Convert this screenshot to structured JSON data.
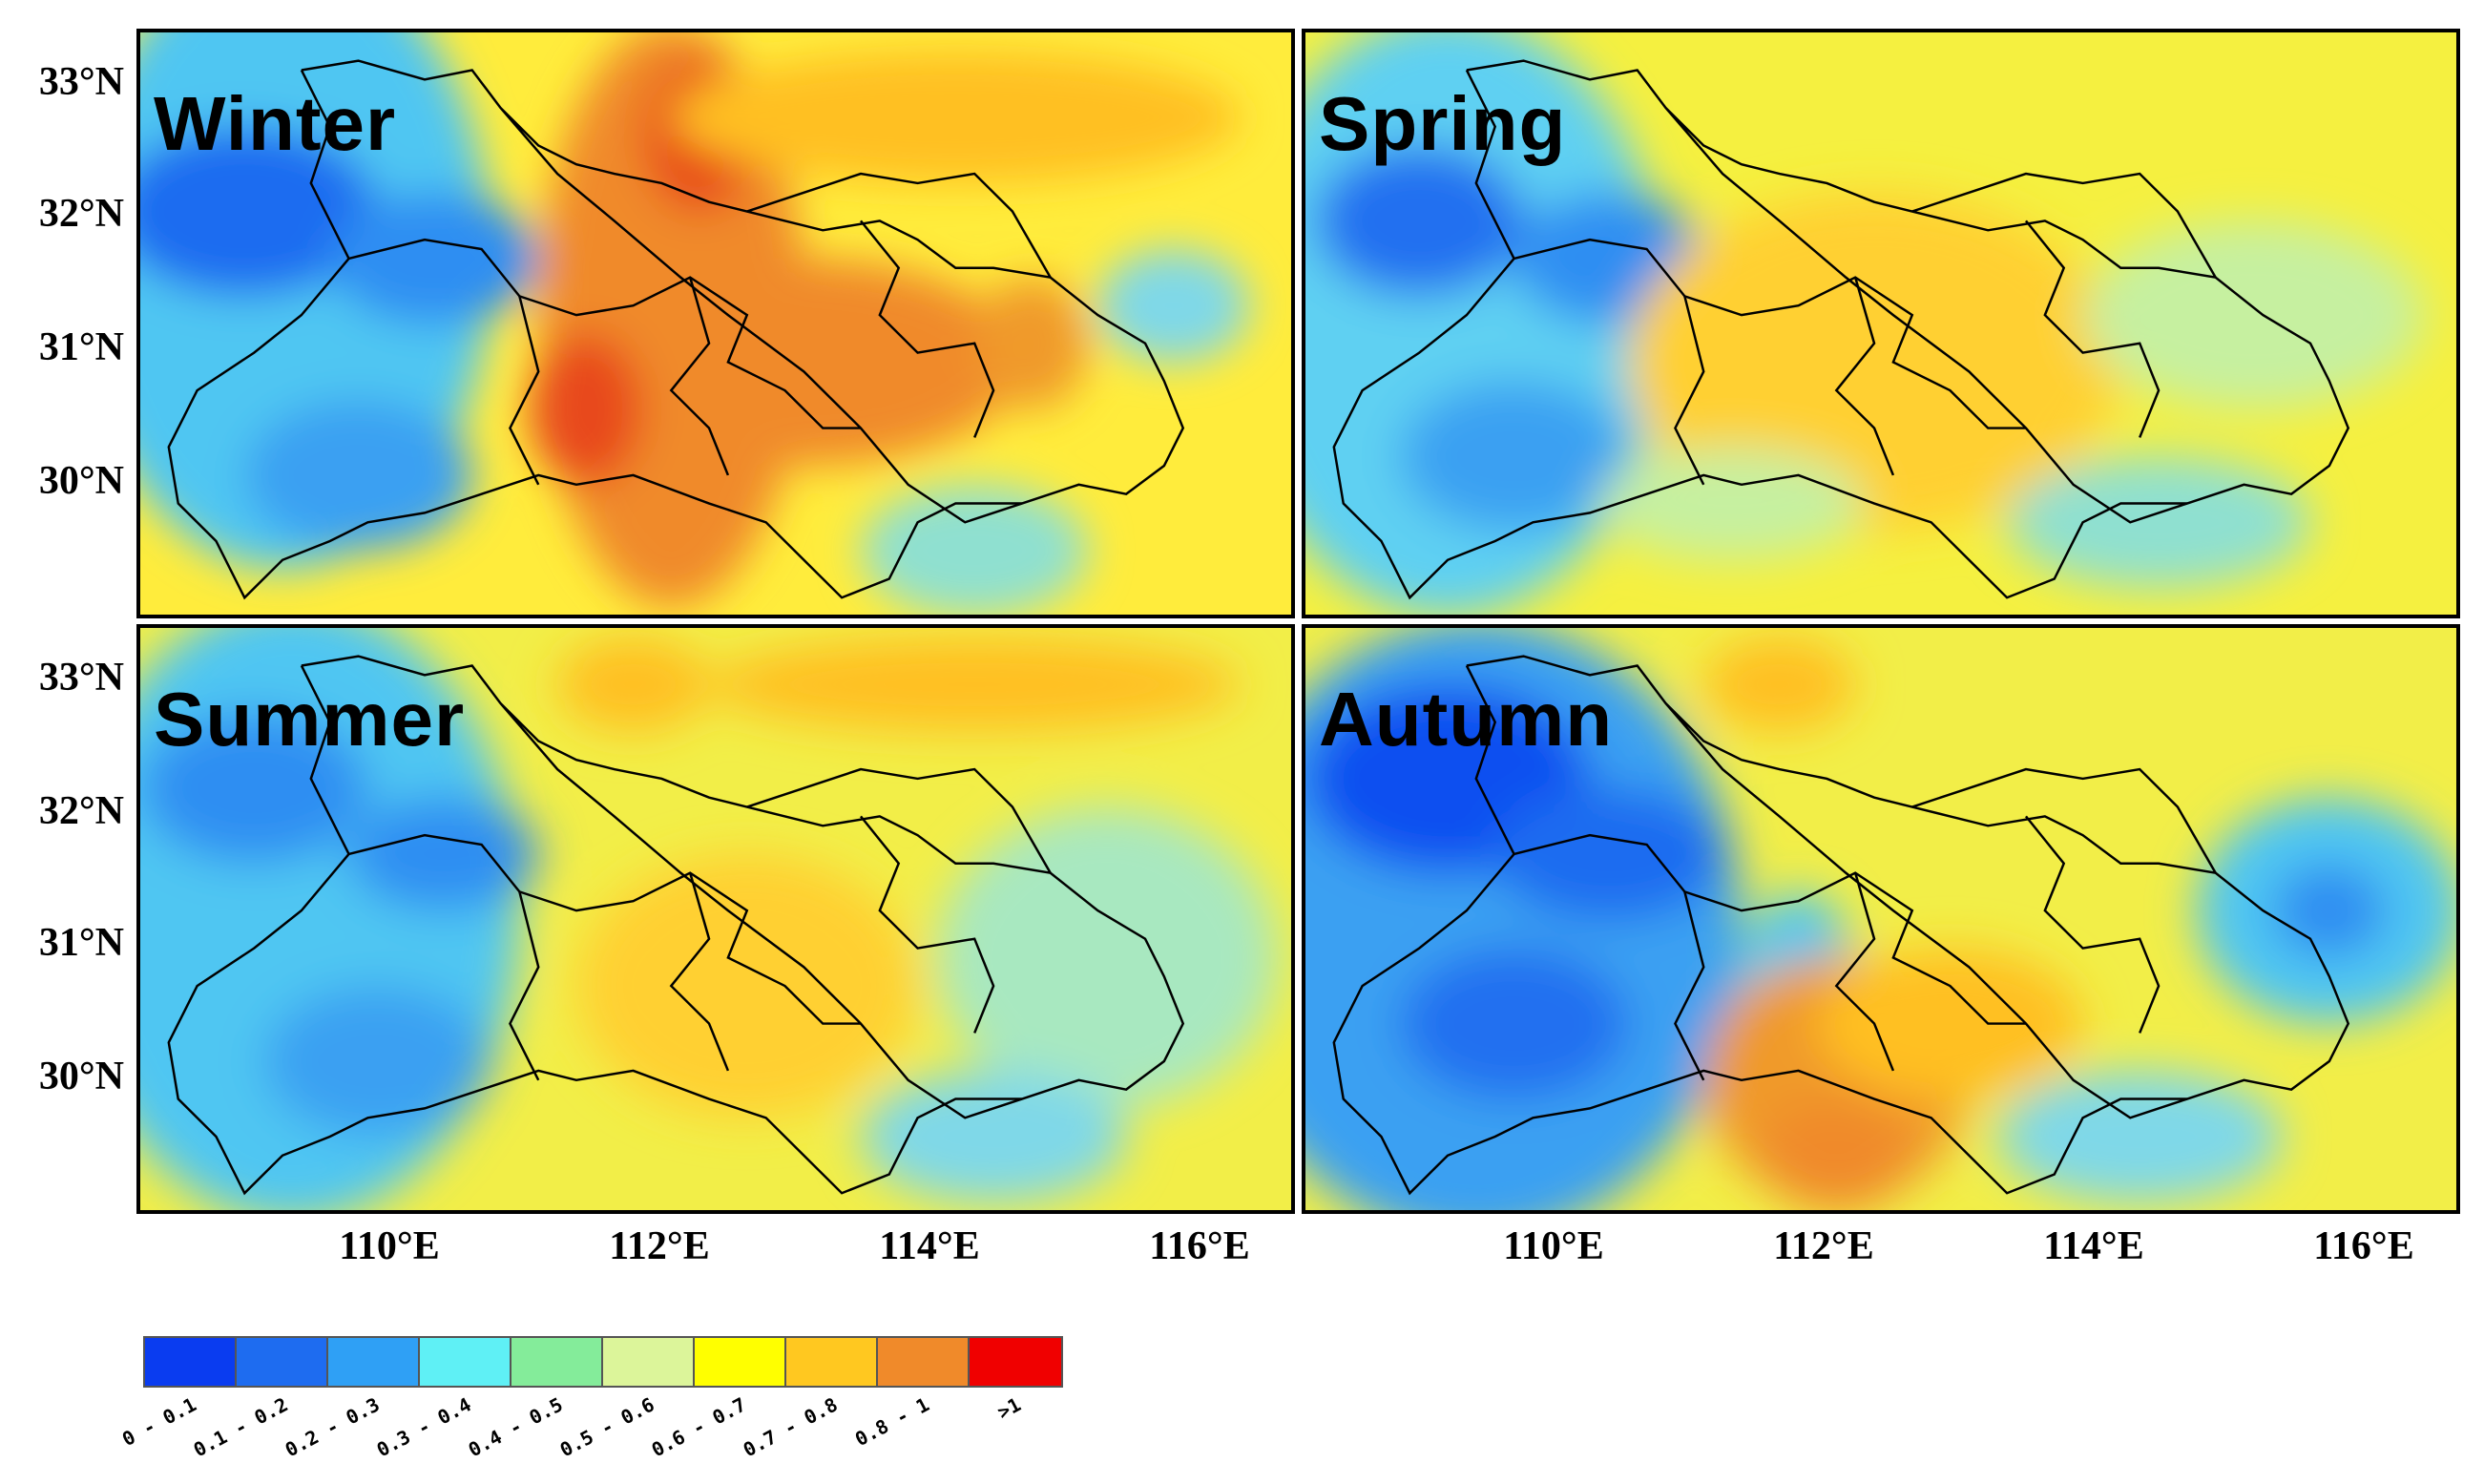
{
  "panels": [
    {
      "season": "Winter"
    },
    {
      "season": "Spring"
    },
    {
      "season": "Summer"
    },
    {
      "season": "Autumn"
    }
  ],
  "latitude_labels": [
    "33°N",
    "32°N",
    "31°N",
    "30°N"
  ],
  "longitude_labels": [
    "110°E",
    "112°E",
    "114°E",
    "116°E"
  ],
  "legend": {
    "bins": [
      {
        "label": "0 - 0.1",
        "color": "#0a3cf0"
      },
      {
        "label": "0.1 - 0.2",
        "color": "#1e6cf0"
      },
      {
        "label": "0.2 - 0.3",
        "color": "#2fa0f5"
      },
      {
        "label": "0.3 - 0.4",
        "color": "#5ff0f5"
      },
      {
        "label": "0.4 - 0.5",
        "color": "#84ec9a"
      },
      {
        "label": "0.5 - 0.6",
        "color": "#dcf59a"
      },
      {
        "label": "0.6 - 0.7",
        "color": "#ffff00"
      },
      {
        "label": "0.7 - 0.8",
        "color": "#ffc820"
      },
      {
        "label": "0.8 - 1",
        "color": "#f08a2a"
      },
      {
        "label": ">1",
        "color": "#f00000"
      }
    ]
  }
}
